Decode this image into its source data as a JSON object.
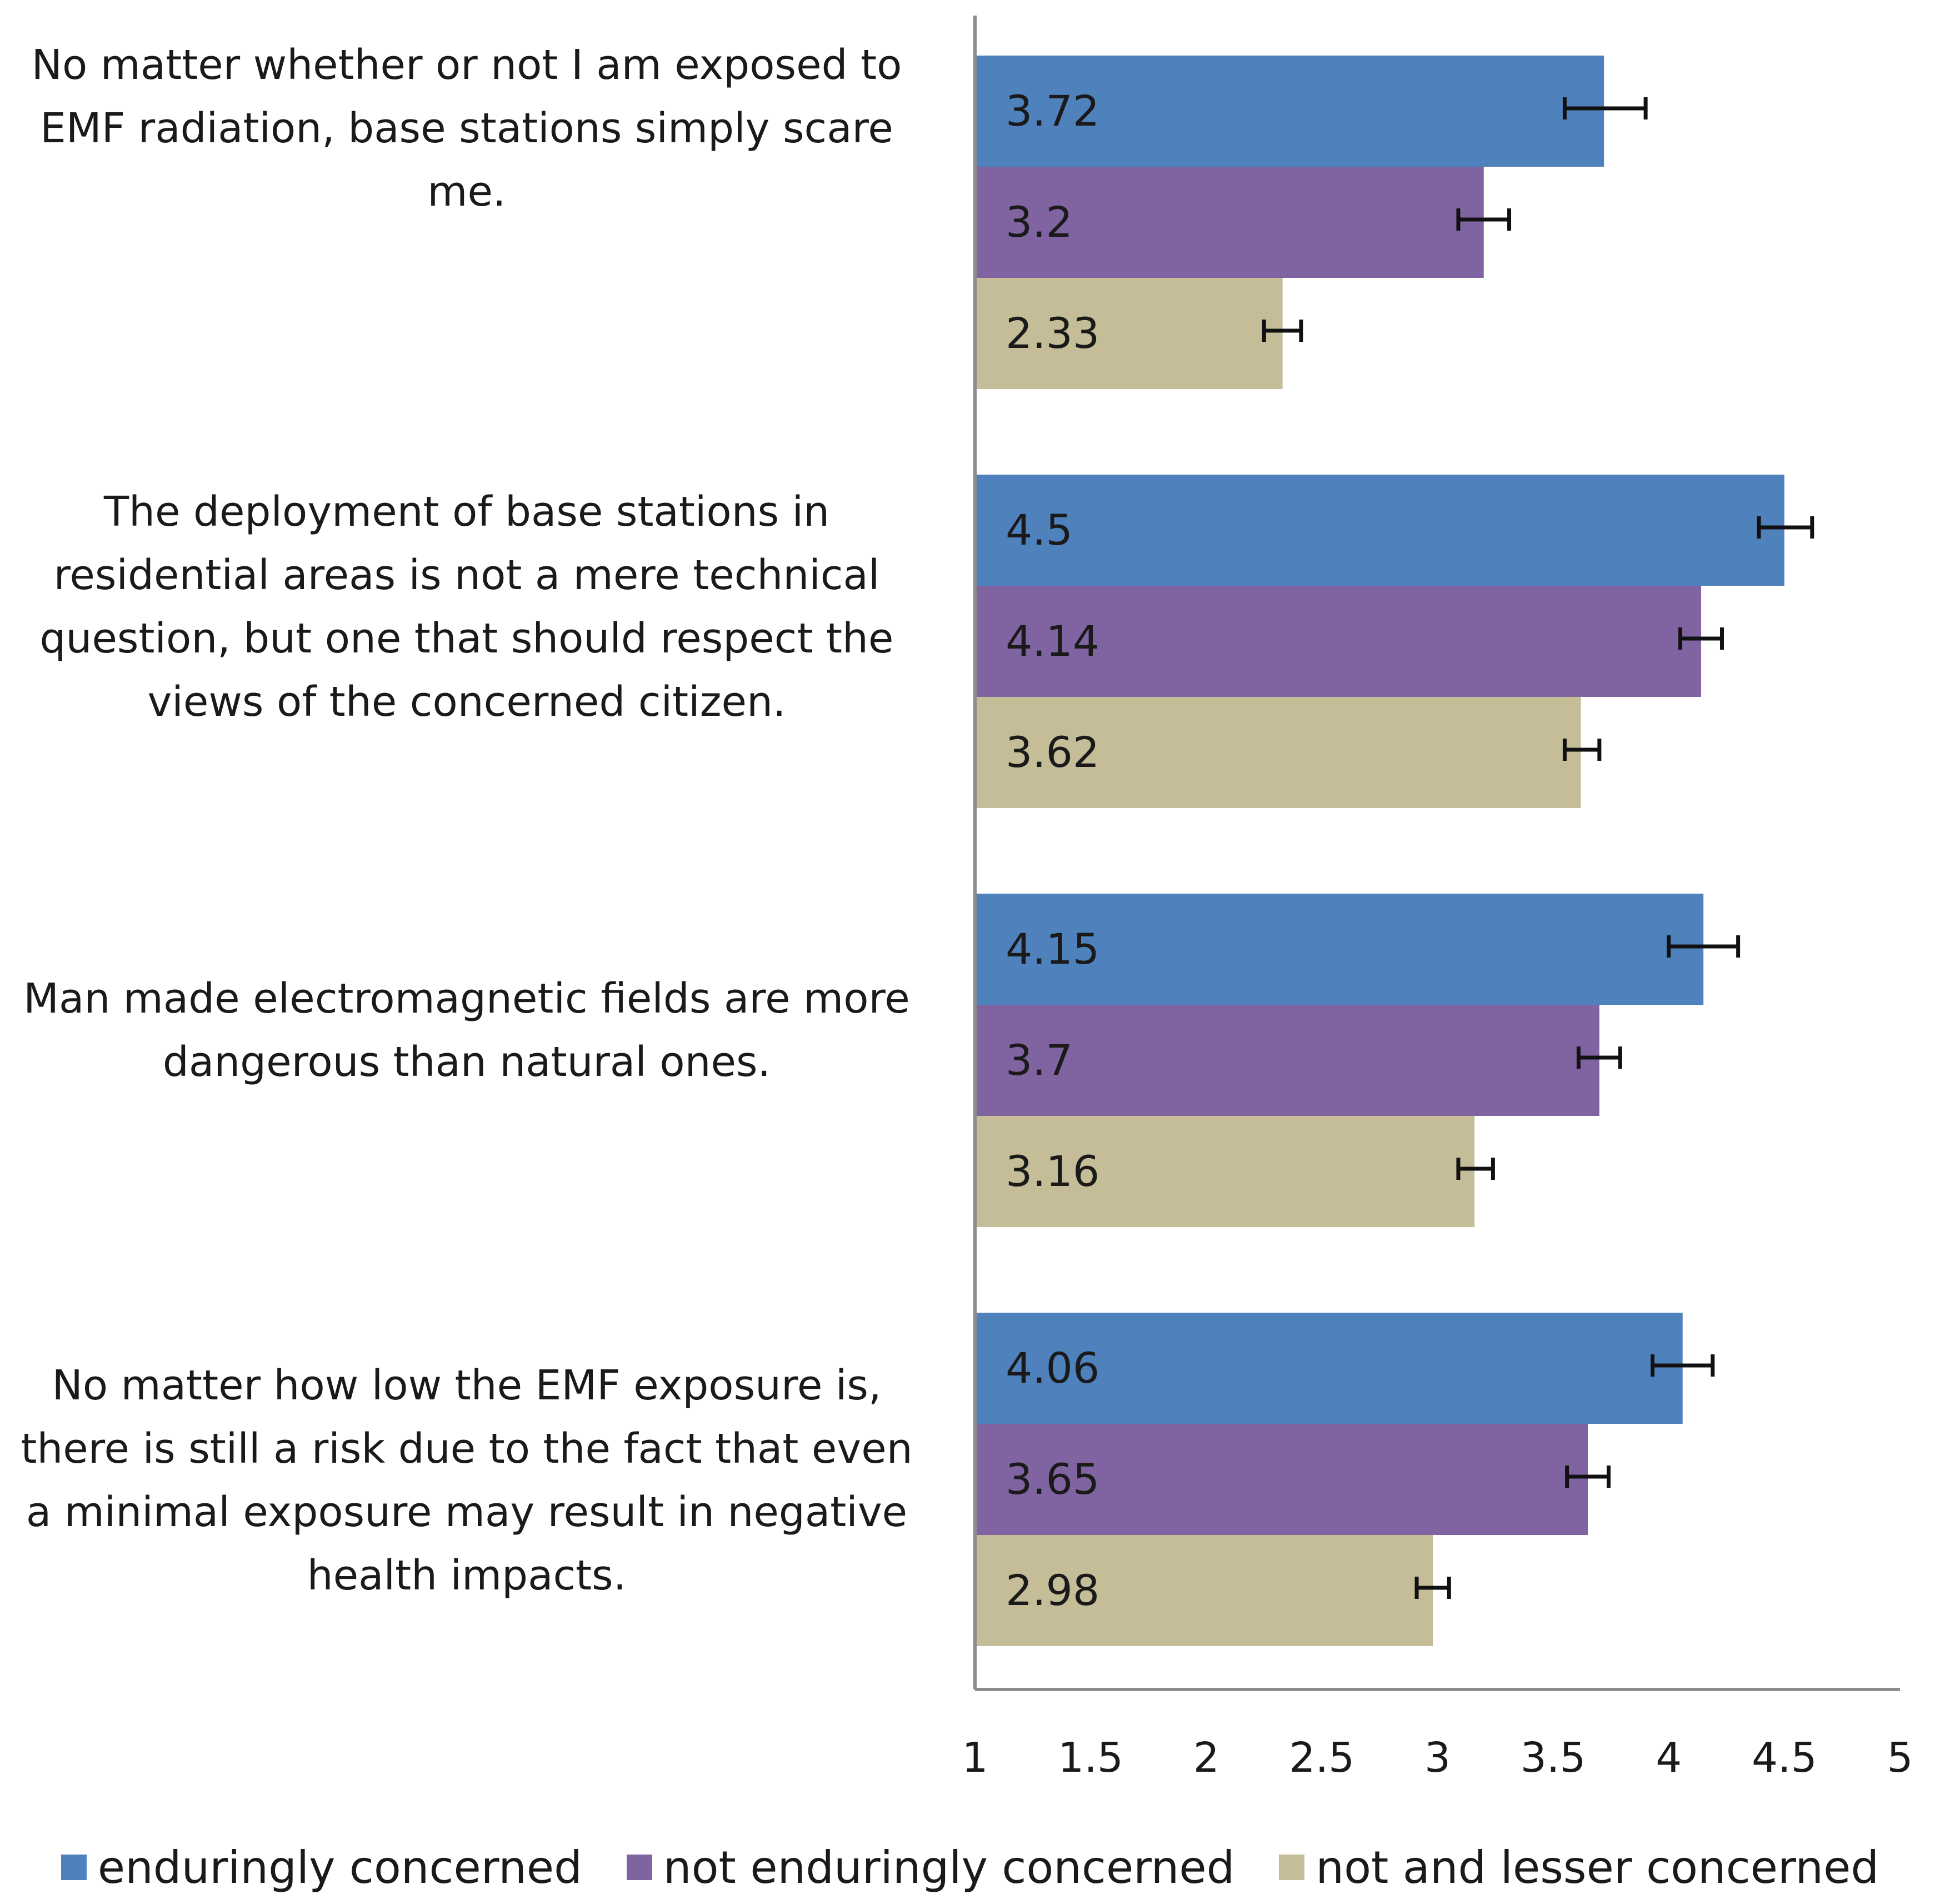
{
  "chart_data": {
    "type": "bar",
    "orientation": "horizontal",
    "title": "",
    "xlabel": "",
    "ylabel": "",
    "xlim": [
      1,
      5
    ],
    "xticks": [
      "1",
      "1.5",
      "2",
      "2.5",
      "3",
      "3.5",
      "4",
      "4.5",
      "5"
    ],
    "grid": false,
    "legend_position": "bottom",
    "categories": [
      "No matter whether or not I am exposed to EMF radiation, base stations simply scare me.",
      "The deployment of base stations in residential areas is not a mere technical question, but one that should respect the views of the concerned citizen.",
      "Man made electromagnetic fields are more dangerous than natural ones.",
      "No matter how low the EMF exposure is, there is still a risk due to the fact that even a minimal exposure may result in negative health impacts."
    ],
    "series": [
      {
        "name": "enduringly concerned",
        "color": "#4f81bd",
        "values": [
          3.72,
          4.5,
          4.15,
          4.06
        ],
        "labels": [
          "3.72",
          "4.5",
          "4.15",
          "4.06"
        ],
        "error_low": [
          3.55,
          4.39,
          4.0,
          3.93
        ],
        "error_high": [
          3.9,
          4.62,
          4.3,
          4.19
        ]
      },
      {
        "name": "not enduringly concerned",
        "color": "#8064a2",
        "values": [
          3.2,
          4.14,
          3.7,
          3.65
        ],
        "labels": [
          "3.2",
          "4.14",
          "3.7",
          "3.65"
        ],
        "error_low": [
          3.09,
          4.05,
          3.61,
          3.56
        ],
        "error_high": [
          3.31,
          4.23,
          3.79,
          3.74
        ]
      },
      {
        "name": "not and lesser concerned",
        "color": "#c4bd97",
        "values": [
          2.33,
          3.62,
          3.16,
          2.98
        ],
        "labels": [
          "2.33",
          "3.62",
          "3.16",
          "2.98"
        ],
        "error_low": [
          2.25,
          3.55,
          3.09,
          2.91
        ],
        "error_high": [
          2.41,
          3.7,
          3.24,
          3.05
        ]
      }
    ]
  }
}
